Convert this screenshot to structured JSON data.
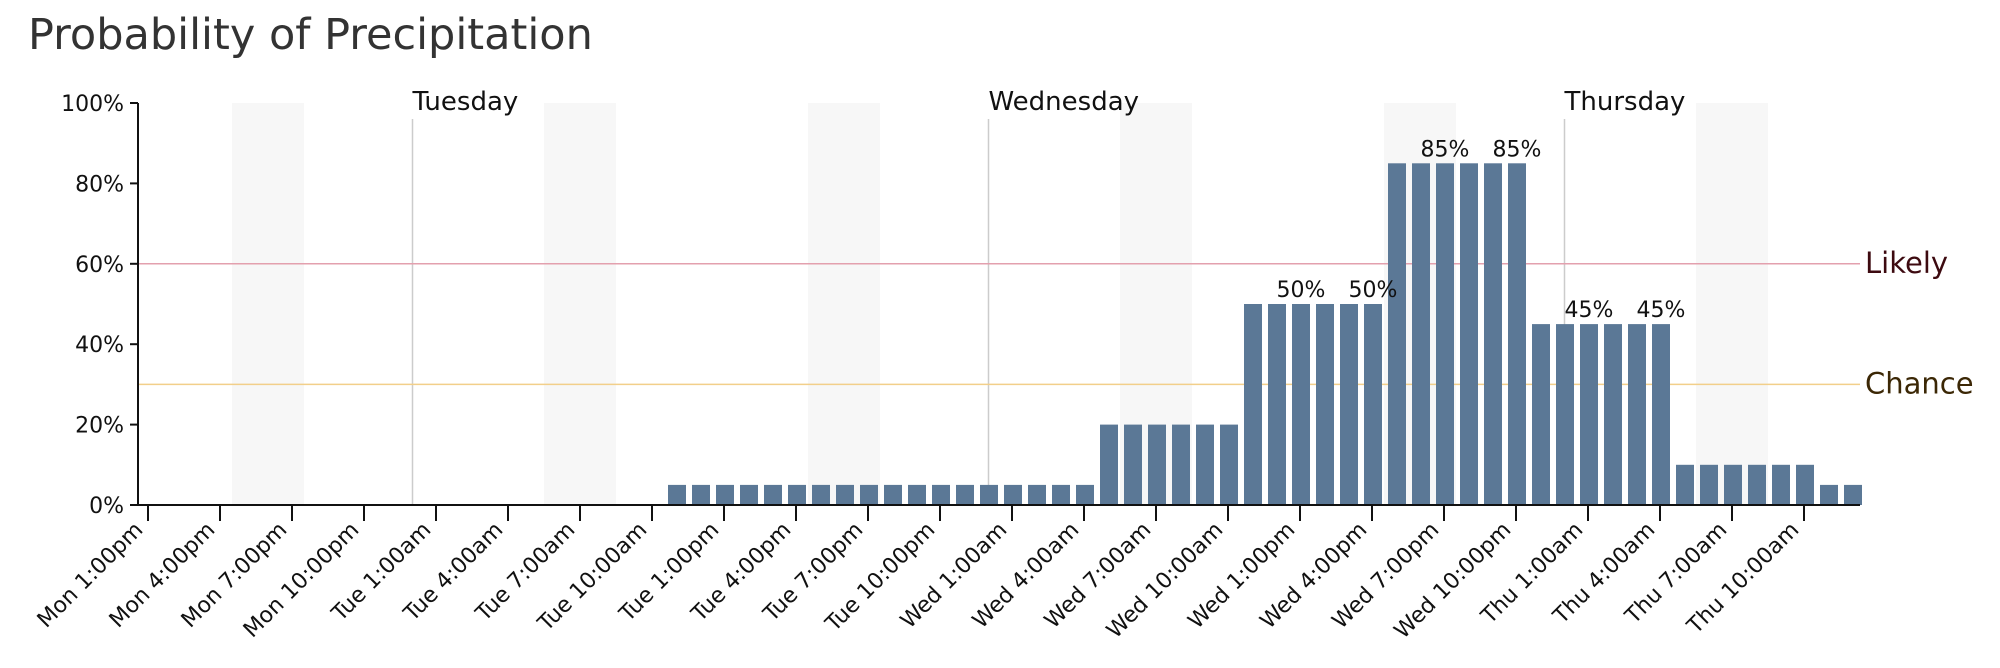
{
  "chart_data": {
    "type": "bar",
    "title": "Probability of Precipitation",
    "ylim": [
      0,
      100
    ],
    "y_ticks": [
      "0%",
      "20%",
      "40%",
      "60%",
      "80%",
      "100%"
    ],
    "y_tick_values": [
      0,
      20,
      40,
      60,
      80,
      100
    ],
    "grid": false,
    "x_tick_labels": [
      "Mon 1:00pm",
      "Mon 4:00pm",
      "Mon 7:00pm",
      "Mon 10:00pm",
      "Tue 1:00am",
      "Tue 4:00am",
      "Tue 7:00am",
      "Tue 10:00am",
      "Tue 1:00pm",
      "Tue 4:00pm",
      "Tue 7:00pm",
      "Tue 10:00pm",
      "Wed 1:00am",
      "Wed 4:00am",
      "Wed 7:00am",
      "Wed 10:00am",
      "Wed 1:00pm",
      "Wed 4:00pm",
      "Wed 7:00pm",
      "Wed 10:00pm",
      "Thu 1:00am",
      "Thu 4:00am",
      "Thu 7:00am",
      "Thu 10:00am"
    ],
    "x_tick_hours": [
      0,
      3,
      6,
      9,
      12,
      15,
      18,
      21,
      24,
      27,
      30,
      33,
      36,
      39,
      42,
      45,
      48,
      51,
      54,
      57,
      60,
      63,
      66,
      69
    ],
    "x_start": "Mon 1:00pm",
    "hours_total": 72,
    "values": [
      0,
      0,
      0,
      0,
      0,
      0,
      0,
      0,
      0,
      0,
      0,
      0,
      0,
      0,
      0,
      0,
      0,
      0,
      0,
      0,
      0,
      0,
      5,
      5,
      5,
      5,
      5,
      5,
      5,
      5,
      5,
      5,
      5,
      5,
      5,
      5,
      5,
      5,
      5,
      5,
      20,
      20,
      20,
      20,
      20,
      20,
      50,
      50,
      50,
      50,
      50,
      50,
      85,
      85,
      85,
      85,
      85,
      85,
      45,
      45,
      45,
      45,
      45,
      45,
      10,
      10,
      10,
      10,
      10,
      10,
      5,
      5
    ],
    "day_labels": [
      {
        "label": "Tuesday",
        "hour": 11
      },
      {
        "label": "Wednesday",
        "hour": 35
      },
      {
        "label": "Thursday",
        "hour": 59
      }
    ],
    "night_bands": [
      {
        "start": 3.5,
        "end": 6.5
      },
      {
        "start": 16.5,
        "end": 19.5
      },
      {
        "start": 27.5,
        "end": 30.5
      },
      {
        "start": 40.5,
        "end": 43.5
      },
      {
        "start": 51.5,
        "end": 54.5
      },
      {
        "start": 64.5,
        "end": 67.5
      }
    ],
    "thresholds": [
      {
        "label": "Likely",
        "value": 60,
        "color": "#e3a0ae",
        "text_color": "#3d0a10"
      },
      {
        "label": "Chance",
        "value": 30,
        "color": "#f2cf8a",
        "text_color": "#3b2705"
      }
    ],
    "annotations": [
      {
        "text": "50%",
        "hour": 48
      },
      {
        "text": "50%",
        "hour": 51
      },
      {
        "text": "85%",
        "hour": 54
      },
      {
        "text": "85%",
        "hour": 57
      },
      {
        "text": "45%",
        "hour": 60
      },
      {
        "text": "45%",
        "hour": 63
      }
    ],
    "colors": {
      "bar": "#5b7896",
      "axis": "#111111",
      "night_band": "#f7f7f7",
      "day_line": "#cccccc"
    }
  }
}
